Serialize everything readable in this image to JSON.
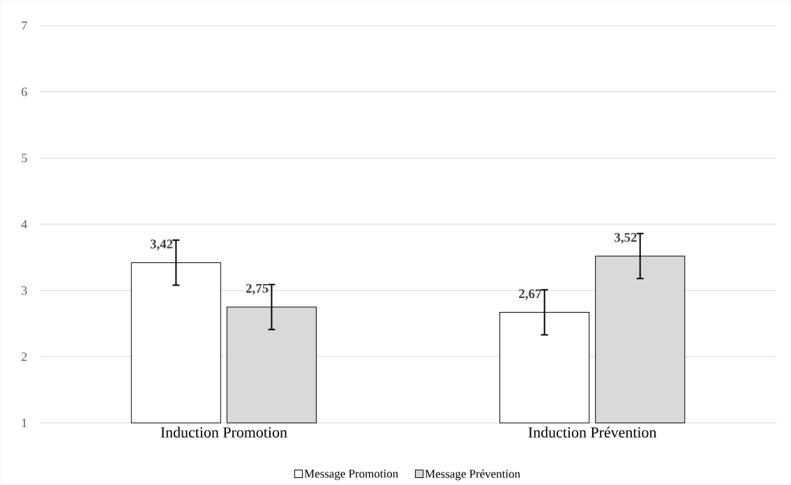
{
  "chart_data": {
    "type": "bar",
    "categories": [
      "Induction Promotion",
      "Induction Prévention"
    ],
    "series": [
      {
        "name": "Message Promotion",
        "color": "#ffffff",
        "values": [
          3.42,
          2.67
        ],
        "errors": [
          0.34,
          0.34
        ],
        "value_labels": [
          "3,42",
          "2,67"
        ]
      },
      {
        "name": "Message Prévention",
        "color": "#d9d9d9",
        "values": [
          2.75,
          3.52
        ],
        "errors": [
          0.34,
          0.34
        ],
        "value_labels": [
          "2,75",
          "3,52"
        ]
      }
    ],
    "ylim": [
      1,
      7
    ],
    "yticks": [
      1,
      2,
      3,
      4,
      5,
      6,
      7
    ],
    "grid": "y",
    "legend": "bottom"
  }
}
